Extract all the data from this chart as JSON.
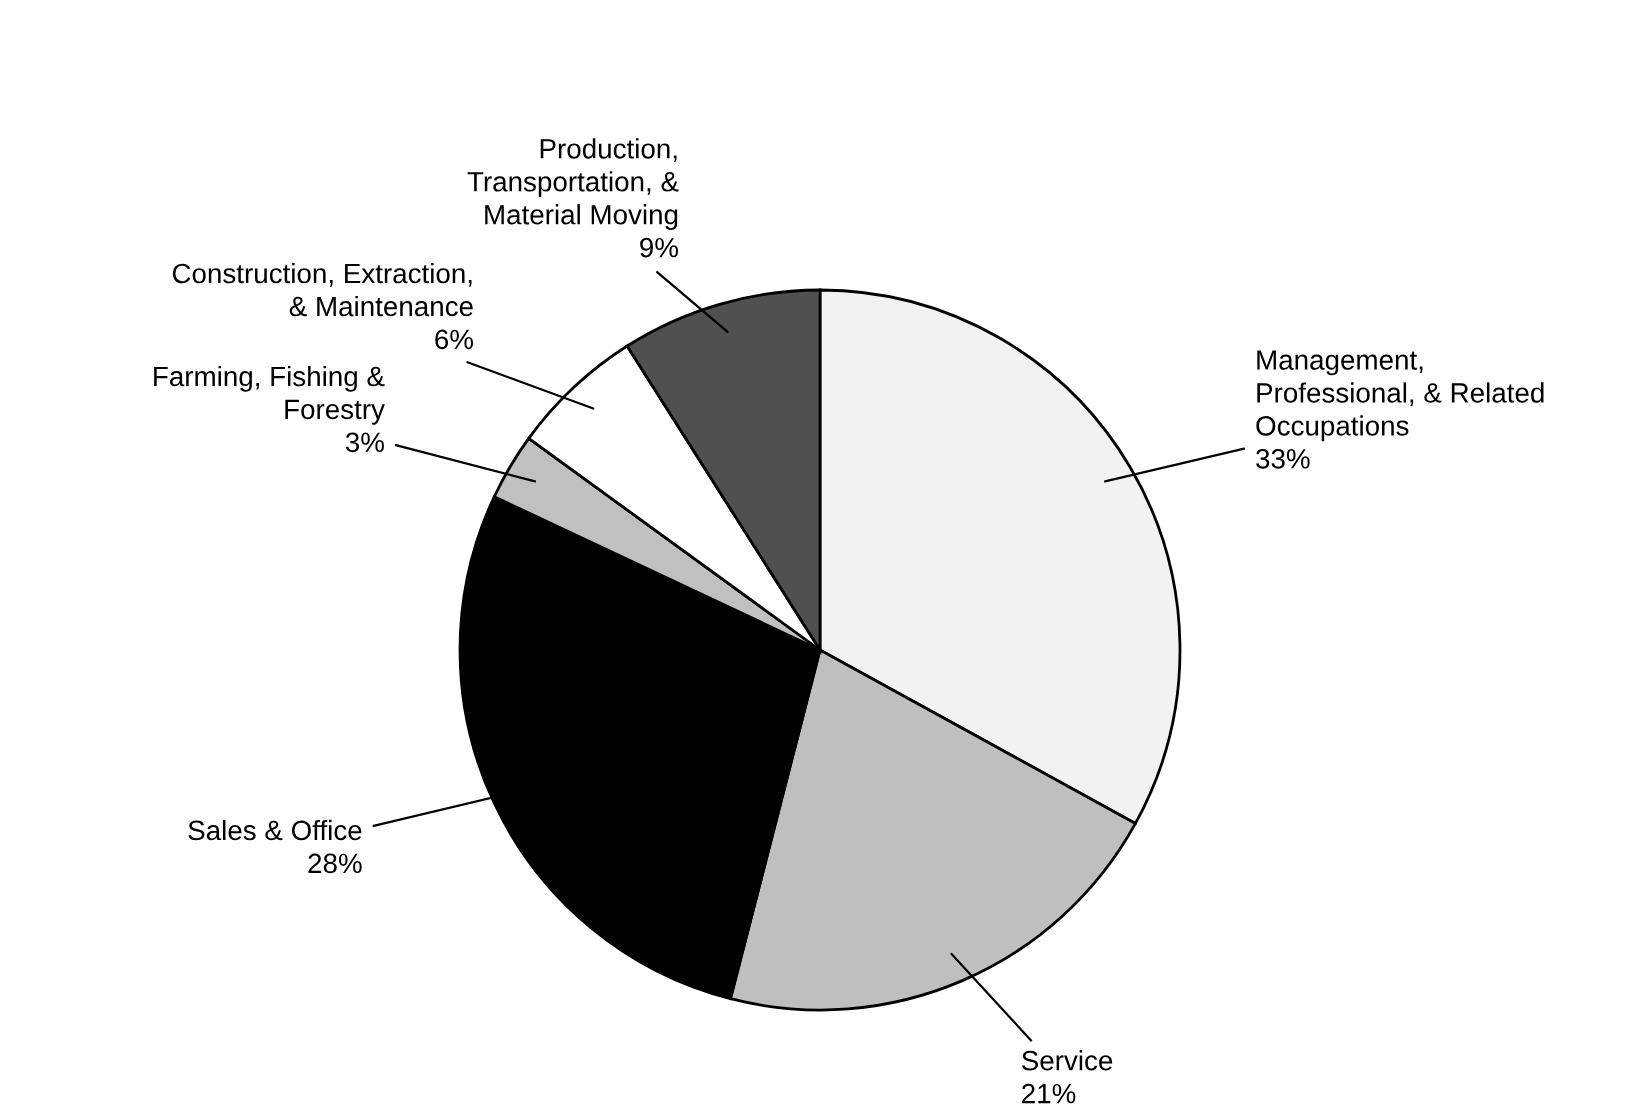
{
  "chart_data": {
    "type": "pie",
    "categories": [
      "Management,\nProfessional, & Related\nOccupations",
      "Service",
      "Sales & Office",
      "Farming, Fishing &\nForestry",
      "Construction, Extraction,\n& Maintenance",
      "Production,\nTransportation, &\nMaterial Moving"
    ],
    "values": [
      33,
      21,
      28,
      3,
      6,
      9
    ],
    "colors": [
      "#f2f2f2",
      "#bfbfbf",
      "#000000",
      "#c0c0c0",
      "#ffffff",
      "#505050"
    ],
    "value_labels": [
      "33%",
      "21%",
      "28%",
      "3%",
      "6%",
      "9%"
    ],
    "legend": false
  }
}
